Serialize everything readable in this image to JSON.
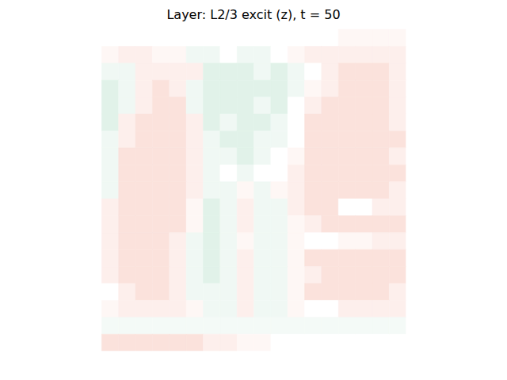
{
  "chart_data": {
    "type": "heatmap",
    "title": "Layer: L2/3 excit (z), t = 50",
    "tick_labels": false,
    "clim": [
      -1,
      1
    ],
    "cells": [
      [
        0,
        0,
        0,
        0,
        0,
        0,
        0,
        0,
        0,
        0,
        0,
        0,
        0,
        0,
        0,
        0.05,
        0.05,
        0.05,
        0.05,
        0
      ],
      [
        0,
        0.05,
        0.1,
        0.1,
        0.05,
        0.05,
        -0.07,
        -0.07,
        0,
        -0.07,
        -0.07,
        0,
        0.05,
        0.1,
        0.1,
        0.1,
        0.1,
        0.1,
        0.1,
        0
      ],
      [
        0,
        -0.07,
        -0.07,
        0.1,
        0.1,
        0.1,
        0.1,
        -0.14,
        -0.14,
        -0.14,
        -0.07,
        -0.14,
        -0.07,
        0,
        0.1,
        0.18,
        0.18,
        0.18,
        0.1,
        0
      ],
      [
        0,
        -0.14,
        -0.07,
        0.1,
        0.18,
        0.1,
        -0.07,
        -0.14,
        -0.14,
        -0.14,
        -0.14,
        -0.14,
        -0.07,
        0.05,
        0.1,
        0.18,
        0.18,
        0.18,
        0.1,
        0
      ],
      [
        0,
        -0.14,
        -0.07,
        0.1,
        0.18,
        0.18,
        -0.07,
        -0.14,
        -0.14,
        -0.14,
        -0.07,
        -0.14,
        0,
        0.1,
        0.18,
        0.18,
        0.18,
        0.18,
        0.1,
        0
      ],
      [
        0,
        -0.14,
        0.1,
        0.18,
        0.18,
        0.18,
        0.1,
        -0.14,
        -0.07,
        -0.14,
        -0.14,
        -0.07,
        0,
        0.18,
        0.18,
        0.18,
        0.18,
        0.18,
        0.1,
        0
      ],
      [
        0,
        -0.07,
        0.1,
        0.18,
        0.18,
        0.18,
        0.1,
        -0.07,
        -0.14,
        -0.14,
        -0.07,
        -0.07,
        0,
        0.18,
        0.18,
        0.18,
        0.18,
        0.18,
        0.18,
        0
      ],
      [
        0,
        -0.07,
        0.18,
        0.18,
        0.18,
        0.18,
        0.1,
        -0.07,
        -0.07,
        -0.14,
        -0.07,
        0,
        0.05,
        0.18,
        0.18,
        0.18,
        0.18,
        0.18,
        0.1,
        0
      ],
      [
        0,
        -0.07,
        0.18,
        0.18,
        0.18,
        0.18,
        0.1,
        -0.07,
        0,
        -0.07,
        0,
        0,
        0.1,
        0.18,
        0.18,
        0.18,
        0.18,
        0.18,
        0.18,
        0
      ],
      [
        0,
        -0.07,
        0.18,
        0.18,
        0.18,
        0.18,
        0.1,
        -0.07,
        -0.07,
        0.05,
        -0.07,
        0.05,
        0.1,
        0.18,
        0.18,
        0.18,
        0.18,
        0.18,
        0.1,
        0
      ],
      [
        0,
        0.1,
        0.18,
        0.18,
        0.18,
        0.18,
        0.05,
        -0.14,
        -0.07,
        0.1,
        -0.07,
        -0.07,
        0.1,
        0.18,
        0.18,
        0,
        0,
        0.1,
        0.1,
        0
      ],
      [
        0,
        0.1,
        0.18,
        0.18,
        0.18,
        0.18,
        0.05,
        -0.14,
        -0.07,
        0.1,
        -0.07,
        -0.07,
        0.05,
        0.1,
        0.18,
        0.18,
        0.18,
        0.18,
        0.18,
        0
      ],
      [
        0,
        0.1,
        0.18,
        0.18,
        0.18,
        0.1,
        -0.07,
        -0.14,
        -0.07,
        0.05,
        -0.07,
        -0.07,
        0.05,
        0,
        0,
        0.05,
        0.05,
        0.1,
        0.1,
        0
      ],
      [
        0,
        0.1,
        0.18,
        0.18,
        0.18,
        0.1,
        -0.07,
        -0.14,
        -0.07,
        0.1,
        -0.07,
        -0.07,
        0.05,
        0.18,
        0.18,
        0.18,
        0.18,
        0.18,
        0.18,
        0
      ],
      [
        0,
        0.1,
        0.18,
        0.18,
        0.18,
        0.1,
        -0.07,
        -0.14,
        -0.07,
        0.1,
        -0.07,
        -0.07,
        0.05,
        0.1,
        0.18,
        0.18,
        0.18,
        0.18,
        0.18,
        0
      ],
      [
        0,
        0,
        0.1,
        0.18,
        0.18,
        0.1,
        -0.07,
        -0.07,
        -0.07,
        0.1,
        -0.07,
        -0.07,
        0.05,
        0.18,
        0.18,
        0.18,
        0.18,
        0.18,
        0.1,
        0
      ],
      [
        0,
        0.05,
        0.1,
        0.1,
        0.1,
        0.1,
        0.05,
        -0.07,
        -0.07,
        0.1,
        -0.07,
        -0.07,
        0.05,
        0,
        0,
        0.1,
        0.1,
        0.1,
        0.1,
        0
      ],
      [
        0,
        -0.05,
        -0.05,
        -0.05,
        -0.05,
        -0.05,
        -0.05,
        -0.05,
        -0.05,
        -0.05,
        -0.05,
        -0.05,
        -0.05,
        -0.05,
        -0.05,
        -0.05,
        -0.05,
        -0.05,
        -0.05,
        0
      ],
      [
        0,
        0.18,
        0.18,
        0.18,
        0.18,
        0.18,
        0.18,
        0.1,
        0.1,
        0.05,
        0.05,
        0,
        0,
        0,
        0,
        0,
        0,
        0,
        0,
        0
      ],
      [
        0,
        0,
        0,
        0,
        0,
        0,
        0,
        0,
        0,
        0,
        0,
        0,
        0,
        0,
        0,
        0,
        0,
        0,
        0,
        0
      ]
    ]
  }
}
